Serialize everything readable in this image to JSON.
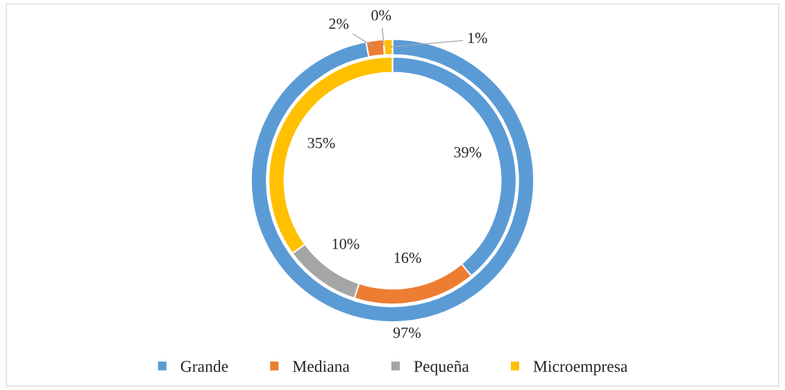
{
  "chart_data": {
    "type": "donut",
    "categories": [
      "Grande",
      "Mediana",
      "Pequeña",
      "Microempresa"
    ],
    "colors": [
      "#5b9bd5",
      "#ed7d31",
      "#a5a5a5",
      "#ffc000"
    ],
    "series": [
      {
        "values": [
          97,
          2,
          0,
          1
        ],
        "value_labels": [
          "97%",
          "2%",
          "0%",
          "1%"
        ]
      },
      {
        "values": [
          39,
          16,
          10,
          35
        ],
        "value_labels": [
          "39%",
          "16%",
          "10%",
          "35%"
        ]
      }
    ],
    "legend": "bottom"
  }
}
